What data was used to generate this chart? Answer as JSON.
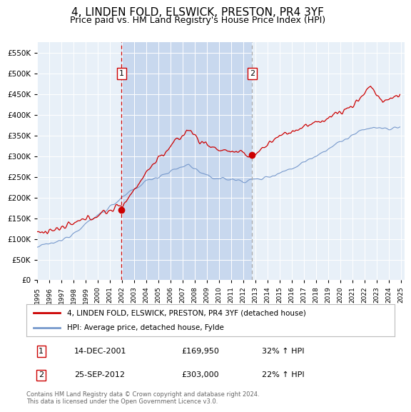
{
  "title": "4, LINDEN FOLD, ELSWICK, PRESTON, PR4 3YF",
  "subtitle": "Price paid vs. HM Land Registry's House Price Index (HPI)",
  "title_fontsize": 11,
  "subtitle_fontsize": 9,
  "background_color": "#ffffff",
  "plot_bg_color": "#e8f0f8",
  "shade_color": "#c8d8ee",
  "grid_color": "#ffffff",
  "ylim": [
    0,
    575000
  ],
  "yticks": [
    0,
    50000,
    100000,
    150000,
    200000,
    250000,
    300000,
    350000,
    400000,
    450000,
    500000,
    550000
  ],
  "sale1_date_num": 2001.958,
  "sale1_price": 169950,
  "sale2_date_num": 2012.729,
  "sale2_price": 303000,
  "legend_property_label": "4, LINDEN FOLD, ELSWICK, PRESTON, PR4 3YF (detached house)",
  "legend_hpi_label": "HPI: Average price, detached house, Fylde",
  "footnote": "Contains HM Land Registry data © Crown copyright and database right 2024.\nThis data is licensed under the Open Government Licence v3.0.",
  "property_color": "#cc0000",
  "hpi_color": "#7799cc",
  "vline1_color": "#cc0000",
  "vline2_color": "#aaaaaa",
  "annotation_box_color": "#cc0000",
  "dot_color": "#cc0000"
}
